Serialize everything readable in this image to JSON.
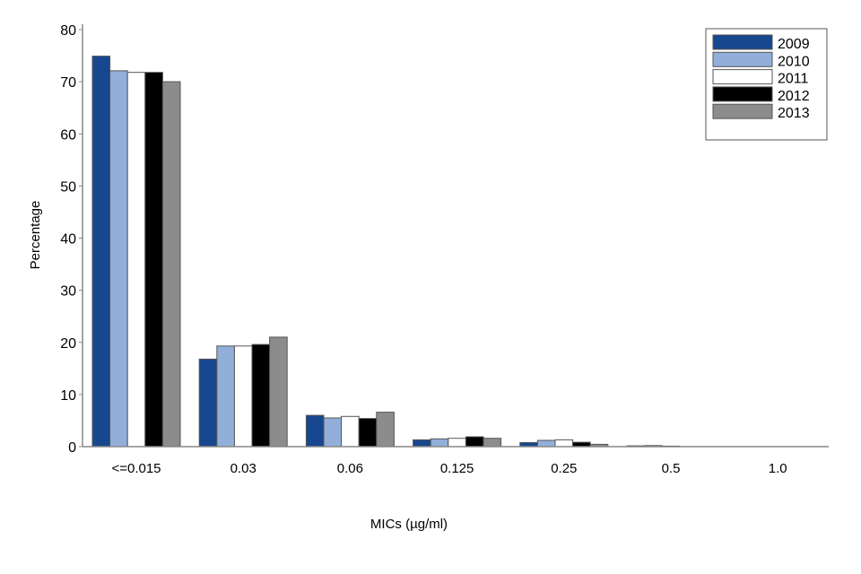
{
  "chart_data": {
    "type": "bar",
    "title": "",
    "xlabel": "MICs (µg/ml)",
    "ylabel": "Percentage",
    "ylim": [
      0,
      80
    ],
    "yticks": [
      0,
      10,
      20,
      30,
      40,
      50,
      60,
      70,
      80
    ],
    "grid": false,
    "legend_position": "top-right",
    "categories": [
      "<=0.015",
      "0.03",
      "0.06",
      "0.125",
      "0.25",
      "0.5",
      "1.0"
    ],
    "series": [
      {
        "name": "2009",
        "color": "#17478E",
        "values": [
          74.9,
          16.8,
          6.0,
          1.3,
          0.8,
          0.15,
          0.0
        ]
      },
      {
        "name": "2010",
        "color": "#92AFD9",
        "values": [
          72.1,
          19.3,
          5.5,
          1.5,
          1.2,
          0.2,
          0.0
        ]
      },
      {
        "name": "2011",
        "color": "#FFFFFF",
        "values": [
          71.8,
          19.3,
          5.8,
          1.6,
          1.3,
          0.1,
          0.0
        ]
      },
      {
        "name": "2012",
        "color": "#000000",
        "values": [
          71.8,
          19.6,
          5.4,
          1.9,
          0.85,
          0.0,
          0.0
        ]
      },
      {
        "name": "2013",
        "color": "#8C8C8C",
        "values": [
          70.0,
          21.0,
          6.6,
          1.6,
          0.45,
          0.0,
          0.0
        ]
      }
    ]
  }
}
